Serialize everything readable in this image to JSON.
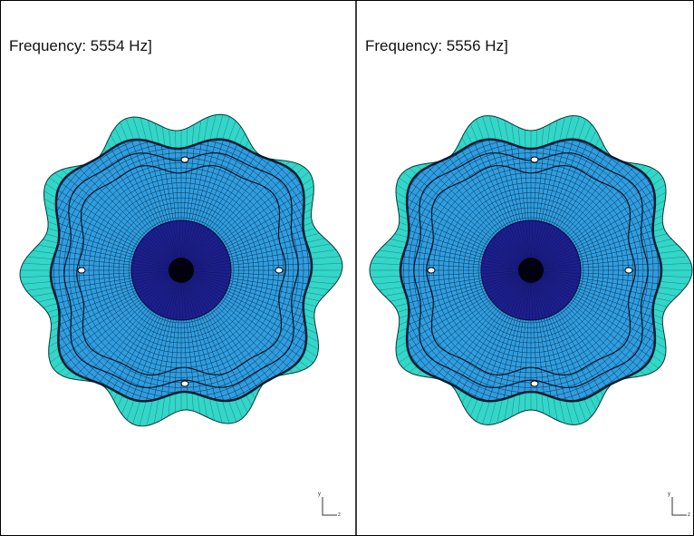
{
  "panels": [
    {
      "label": "Frequency: 5554 Hz]"
    },
    {
      "label": "Frequency: 5556 Hz]"
    }
  ],
  "triad": {
    "y": "y",
    "z": "z"
  }
}
